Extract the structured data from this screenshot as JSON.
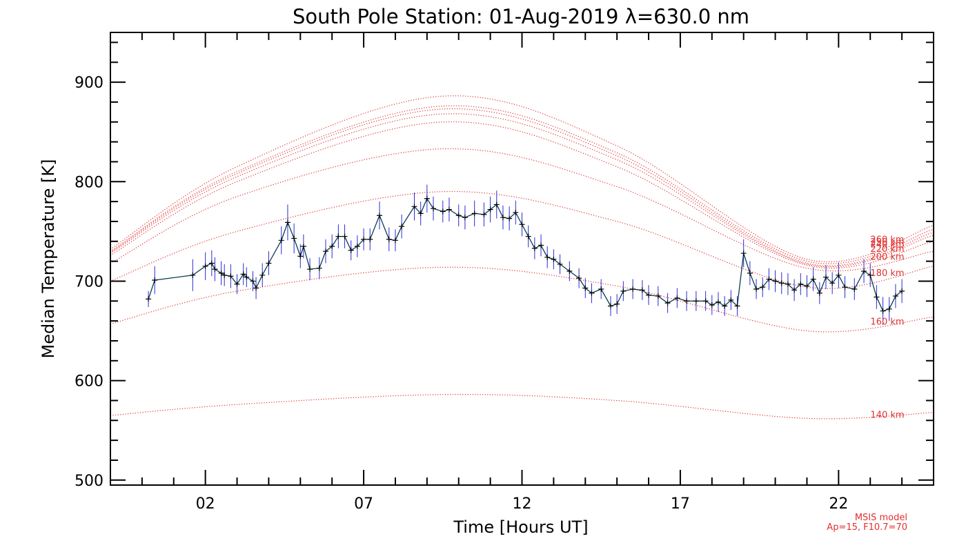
{
  "chart_data": {
    "type": "line",
    "title": "South Pole Station: 01-Aug-2019 λ=630.0 nm",
    "xlabel": "Time [Hours UT]",
    "ylabel": "Median Temperature [K]",
    "xlim": [
      -1,
      25
    ],
    "ylim": [
      495,
      950
    ],
    "x_ticks": [
      2,
      7,
      12,
      17,
      22
    ],
    "x_tick_labels": [
      "02",
      "07",
      "12",
      "17",
      "22"
    ],
    "y_ticks": [
      500,
      600,
      700,
      800,
      900
    ],
    "y_tick_labels": [
      "500",
      "600",
      "700",
      "800",
      "900"
    ],
    "grid": false,
    "colors": {
      "data_line": "#0b3b50",
      "error_bar": "#2a2ad8",
      "marker": "#000000",
      "model": "#e03030"
    },
    "model_curves": [
      {
        "label": "140 km",
        "points": [
          [
            -1,
            565
          ],
          [
            3,
            576
          ],
          [
            9.5,
            586
          ],
          [
            15,
            580
          ],
          [
            21,
            562
          ],
          [
            25,
            568
          ]
        ]
      },
      {
        "label": "160 km",
        "points": [
          [
            -1,
            657
          ],
          [
            3,
            690
          ],
          [
            9.5,
            714
          ],
          [
            15,
            695
          ],
          [
            21,
            650
          ],
          [
            25,
            664
          ]
        ]
      },
      {
        "label": "180 km",
        "points": [
          [
            -1,
            700
          ],
          [
            3,
            750
          ],
          [
            9.5,
            790
          ],
          [
            15,
            760
          ],
          [
            21,
            694
          ],
          [
            25,
            715
          ]
        ]
      },
      {
        "label": "200 km",
        "points": [
          [
            -1,
            718
          ],
          [
            3,
            785
          ],
          [
            9.5,
            833
          ],
          [
            15,
            795
          ],
          [
            21,
            713
          ],
          [
            25,
            730
          ]
        ]
      },
      {
        "label": "220 km",
        "points": [
          [
            -1,
            726
          ],
          [
            3,
            800
          ],
          [
            9.5,
            860
          ],
          [
            15,
            815
          ],
          [
            21,
            716
          ],
          [
            25,
            740
          ]
        ]
      },
      {
        "label": "240 km",
        "points": [
          [
            -1,
            728
          ],
          [
            3,
            805
          ],
          [
            9.5,
            868
          ],
          [
            15,
            822
          ],
          [
            21,
            717
          ],
          [
            25,
            746
          ]
        ]
      },
      {
        "label": "250 km",
        "points": [
          [
            -1,
            729
          ],
          [
            3,
            808
          ],
          [
            9.5,
            873
          ],
          [
            15,
            826
          ],
          [
            21,
            718
          ],
          [
            25,
            749
          ]
        ]
      },
      {
        "label": "260 km",
        "points": [
          [
            -1,
            730
          ],
          [
            3,
            810
          ],
          [
            9.5,
            876
          ],
          [
            15,
            829
          ],
          [
            21,
            720
          ],
          [
            25,
            752
          ]
        ]
      },
      {
        "label": "",
        "points": [
          [
            -1,
            732
          ],
          [
            3,
            815
          ],
          [
            9.5,
            886
          ],
          [
            15,
            836
          ],
          [
            21,
            722
          ],
          [
            25,
            756
          ]
        ]
      }
    ],
    "series": [
      {
        "x": [
          0.2,
          0.4,
          1.6,
          2.0,
          2.2,
          2.3,
          2.5,
          2.6,
          2.8,
          3.0,
          3.2,
          3.3,
          3.5,
          3.6,
          3.8,
          4.0,
          4.4,
          4.6,
          4.8,
          5.0,
          5.1,
          5.3,
          5.6,
          5.8,
          6.0,
          6.2,
          6.4,
          6.6,
          6.8,
          7.0,
          7.2,
          7.5,
          7.8,
          8.0,
          8.2,
          8.6,
          8.8,
          9.0,
          9.2,
          9.5,
          9.7,
          10.0,
          10.2,
          10.5,
          10.8,
          11.0,
          11.2,
          11.4,
          11.6,
          11.8,
          12.0,
          12.2,
          12.4,
          12.6,
          12.8,
          13.0,
          13.2,
          13.5,
          13.8,
          14.0,
          14.2,
          14.5,
          14.8,
          15.0,
          15.2,
          15.5,
          15.8,
          16.0,
          16.3,
          16.6,
          16.9,
          17.2,
          17.5,
          17.8,
          18.0,
          18.2,
          18.4,
          18.6,
          18.8,
          19.0,
          19.2,
          19.4,
          19.6,
          19.8,
          20.0,
          20.2,
          20.4,
          20.6,
          20.8,
          21.0,
          21.2,
          21.4,
          21.6,
          21.8,
          22.0,
          22.2,
          22.5,
          22.8,
          23.0,
          23.2,
          23.4,
          23.6,
          23.8,
          24.0
        ],
        "y": [
          682,
          701,
          706,
          715,
          718,
          712,
          708,
          706,
          705,
          697,
          707,
          704,
          700,
          693,
          706,
          718,
          741,
          759,
          743,
          725,
          735,
          712,
          713,
          730,
          735,
          745,
          745,
          731,
          735,
          742,
          742,
          766,
          742,
          741,
          755,
          775,
          768,
          783,
          773,
          770,
          772,
          766,
          764,
          768,
          767,
          772,
          777,
          764,
          763,
          769,
          757,
          745,
          733,
          736,
          724,
          722,
          717,
          710,
          703,
          693,
          688,
          692,
          675,
          677,
          690,
          692,
          691,
          686,
          685,
          678,
          683,
          680,
          680,
          680,
          676,
          679,
          675,
          681,
          675,
          728,
          708,
          692,
          694,
          702,
          700,
          698,
          697,
          691,
          697,
          695,
          702,
          688,
          704,
          698,
          706,
          694,
          692,
          710,
          706,
          684,
          670,
          672,
          685,
          690
        ],
        "err": [
          8,
          14,
          16,
          14,
          13,
          12,
          12,
          11,
          12,
          10,
          11,
          10,
          10,
          11,
          12,
          12,
          14,
          18,
          15,
          12,
          12,
          11,
          11,
          12,
          12,
          12,
          12,
          10,
          11,
          11,
          11,
          14,
          12,
          11,
          12,
          14,
          12,
          14,
          12,
          11,
          12,
          11,
          12,
          13,
          12,
          13,
          14,
          12,
          12,
          12,
          12,
          11,
          11,
          11,
          11,
          10,
          10,
          10,
          10,
          10,
          10,
          10,
          10,
          10,
          10,
          10,
          10,
          10,
          10,
          10,
          10,
          10,
          10,
          10,
          10,
          10,
          10,
          10,
          10,
          14,
          12,
          10,
          10,
          11,
          11,
          11,
          11,
          11,
          11,
          11,
          12,
          11,
          12,
          11,
          13,
          11,
          11,
          12,
          12,
          12,
          14,
          12,
          12,
          12
        ]
      }
    ],
    "annotations": [
      "MSIS model",
      "Ap=15, F10.7=70"
    ]
  }
}
